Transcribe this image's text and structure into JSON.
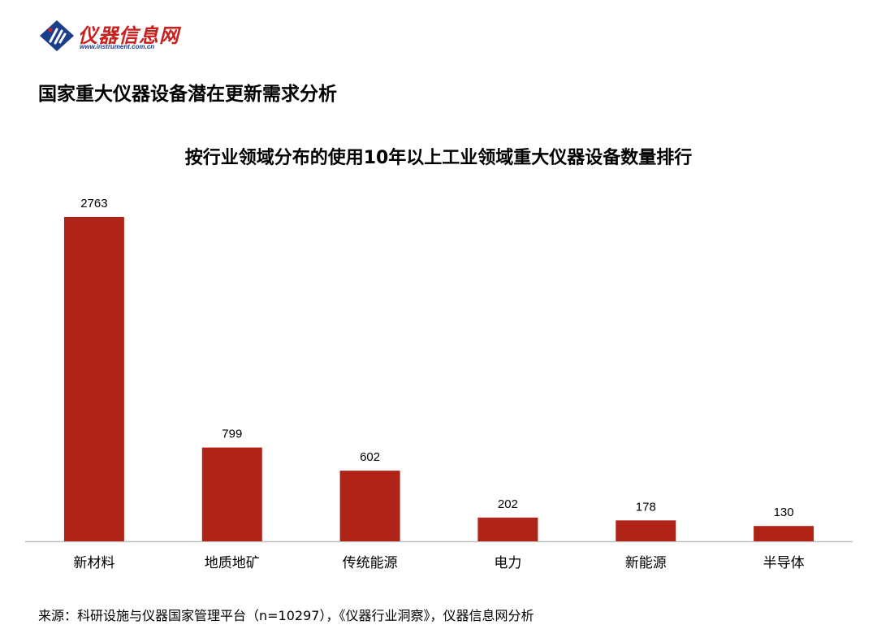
{
  "logo": {
    "name": "仪器信息网",
    "url": "www.instrument.com.cn"
  },
  "page_title": "国家重大仪器设备潜在更新需求分析",
  "source": "来源：科研设施与仪器国家管理平台（n=10297），《仪器行业洞察》，仪器信息网分析",
  "colors": {
    "bar": "#b02418",
    "brand_red": "#c8201e",
    "brand_blue": "#1a3e8c",
    "axis": "#bfbfbf"
  },
  "chart_data": {
    "type": "bar",
    "title": "按行业领域分布的使用10年以上工业领域重大仪器设备数量排行",
    "categories": [
      "新材料",
      "地质地矿",
      "传统能源",
      "电力",
      "新能源",
      "半导体"
    ],
    "values": [
      2763,
      799,
      602,
      202,
      178,
      130
    ],
    "xlabel": "",
    "ylabel": "",
    "ylim": [
      0,
      2763
    ],
    "grid": false,
    "data_labels": true
  }
}
